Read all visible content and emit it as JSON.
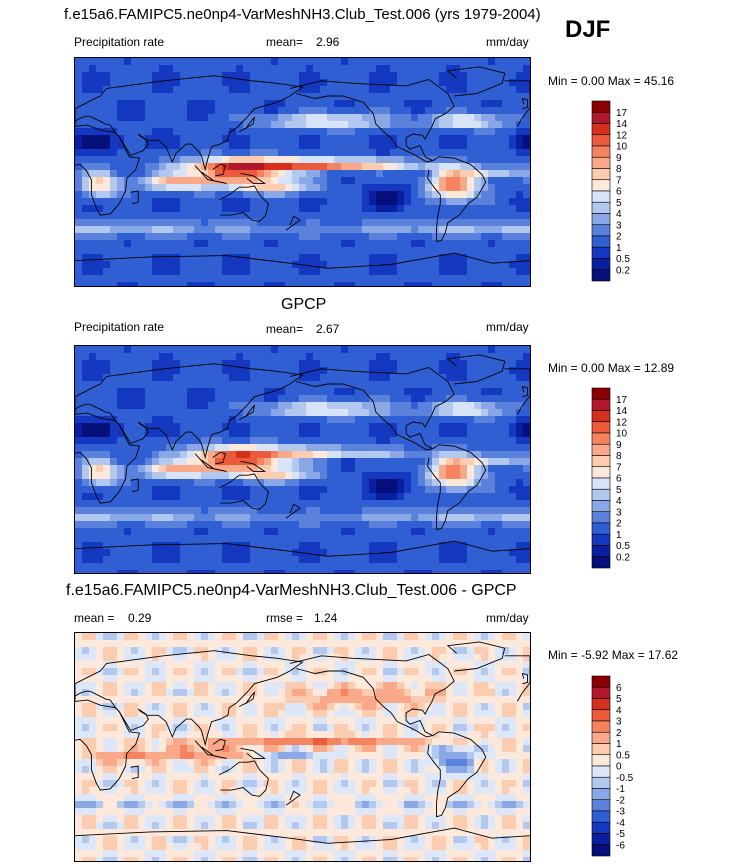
{
  "season": "DJF",
  "panels": [
    {
      "id": "model",
      "title": "f.e15a6.FAMIPC5.ne0np4-VarMeshNH3.Club_Test.006 (yrs 1979-2004)",
      "left_label": "Precipitation rate",
      "stat_label": "mean=",
      "stat_value": "2.96",
      "units": "mm/day",
      "minmax": "Min =   0.00 Max = 45.16",
      "palette": "precip",
      "colorbar_levels": [
        "17",
        "14",
        "12",
        "10",
        "9",
        "8",
        "7",
        "6",
        "5",
        "4",
        "3",
        "2",
        "1",
        "0.5",
        "0.2"
      ],
      "colorbar_colors": [
        "#8b0000",
        "#b2182b",
        "#d6301d",
        "#ec5a3c",
        "#f4845f",
        "#f9a98a",
        "#fcccb1",
        "#fde9dc",
        "#d7e3f7",
        "#b3c8ef",
        "#8aa8e6",
        "#5a82dc",
        "#2f5fd3",
        "#1438c0",
        "#0a1fa0",
        "#06107a"
      ]
    },
    {
      "id": "obs",
      "title": "GPCP",
      "left_label": "Precipitation rate",
      "stat_label": "mean=",
      "stat_value": "2.67",
      "units": "mm/day",
      "minmax": "Min =   0.00 Max = 12.89",
      "palette": "precip",
      "colorbar_levels": [
        "17",
        "14",
        "12",
        "10",
        "9",
        "8",
        "7",
        "6",
        "5",
        "4",
        "3",
        "2",
        "1",
        "0.5",
        "0.2"
      ],
      "colorbar_colors": [
        "#8b0000",
        "#b2182b",
        "#d6301d",
        "#ec5a3c",
        "#f4845f",
        "#f9a98a",
        "#fcccb1",
        "#fde9dc",
        "#d7e3f7",
        "#b3c8ef",
        "#8aa8e6",
        "#5a82dc",
        "#2f5fd3",
        "#1438c0",
        "#0a1fa0",
        "#06107a"
      ]
    },
    {
      "id": "diff",
      "title": "f.e15a6.FAMIPC5.ne0np4-VarMeshNH3.Club_Test.006 - GPCP",
      "left_label": "mean =",
      "left_value": "0.29",
      "stat_label": "rmse =",
      "stat_value": "1.24",
      "units": "mm/day",
      "minmax": "Min =  -5.92 Max = 17.62",
      "palette": "diff",
      "colorbar_levels": [
        "6",
        "5",
        "4",
        "3",
        "2",
        "1",
        "0.5",
        "0",
        "-0.5",
        "-1",
        "-2",
        "-3",
        "-4",
        "-5",
        "-6"
      ],
      "colorbar_colors": [
        "#8b0000",
        "#b2182b",
        "#d6301d",
        "#ec5a3c",
        "#f4845f",
        "#f9a98a",
        "#fcccb1",
        "#fde9dc",
        "#dde7f8",
        "#b3c8ef",
        "#8aa8e6",
        "#5a82dc",
        "#2f5fd3",
        "#1438c0",
        "#0a1fa0",
        "#06107a"
      ]
    }
  ]
}
